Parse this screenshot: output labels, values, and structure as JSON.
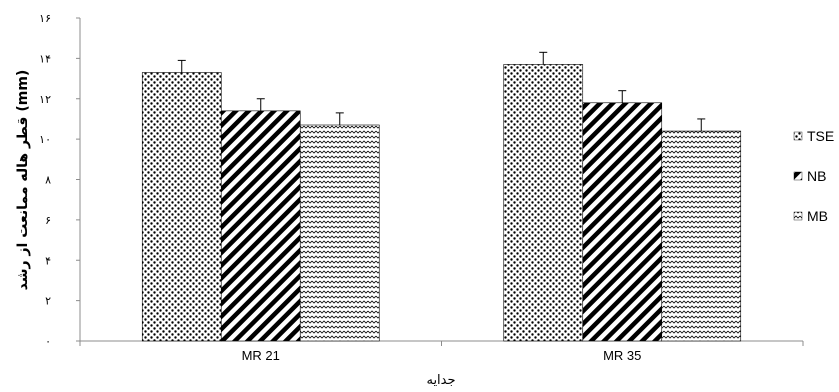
{
  "chart_data": {
    "type": "bar",
    "title": "",
    "xlabel": "جدایه",
    "ylabel": "قطر هاله ممانعت از رشد (mm)",
    "categories": [
      "MR 21",
      "MR 35"
    ],
    "ylim": [
      0,
      16
    ],
    "y_ticks": [
      "۰",
      "۲",
      "۴",
      "۶",
      "۸",
      "۱۰",
      "۱۲",
      "۱۴",
      "۱۶"
    ],
    "grid": false,
    "legend_position": "right",
    "series": [
      {
        "name": "TSE",
        "values": [
          13.3,
          13.7
        ],
        "errors": [
          0.6,
          0.6
        ],
        "pattern": "dots"
      },
      {
        "name": "NB",
        "values": [
          11.4,
          11.8
        ],
        "errors": [
          0.6,
          0.6
        ],
        "pattern": "diagonal-stripes"
      },
      {
        "name": "MB",
        "values": [
          10.7,
          10.4
        ],
        "errors": [
          0.6,
          0.6
        ],
        "pattern": "zigzag"
      }
    ]
  }
}
